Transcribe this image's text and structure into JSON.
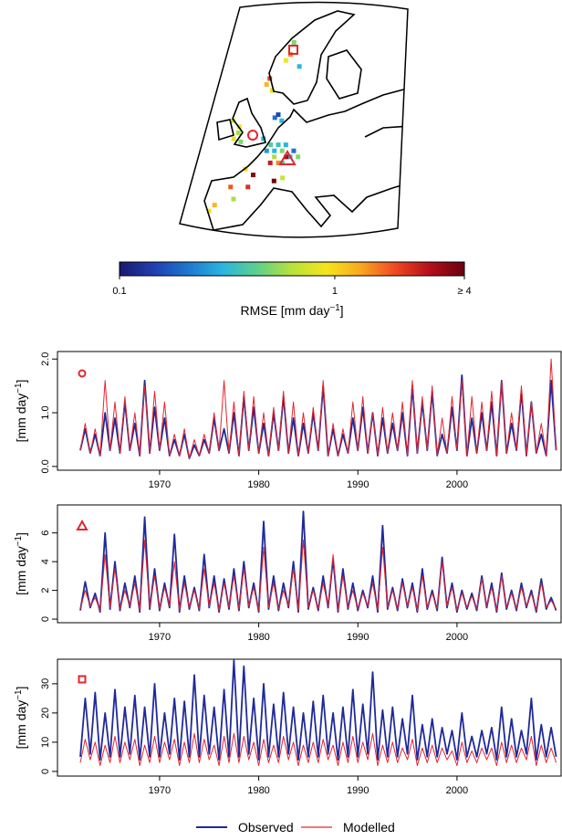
{
  "chart_data": [
    {
      "type": "map",
      "x": [
        -1,
        -2,
        0,
        -3,
        -1,
        6,
        8,
        9,
        10,
        11,
        12,
        7,
        9,
        8,
        10,
        11,
        13,
        14,
        12,
        15,
        9,
        10,
        11,
        6,
        7,
        8,
        13,
        15,
        17,
        18,
        2,
        4,
        -1,
        -4,
        0,
        3,
        -5,
        11,
        9
      ],
      "y": [
        53,
        52,
        51.5,
        55,
        54,
        52,
        51,
        50,
        51,
        50,
        51,
        50,
        49,
        48,
        48,
        48,
        49,
        50,
        49,
        49,
        55.5,
        56,
        55,
        61,
        62,
        60,
        65,
        66,
        68,
        64,
        47,
        46,
        44,
        41,
        42,
        44,
        40,
        45.5,
        45
      ],
      "values": [
        0.6,
        0.8,
        0.5,
        0.7,
        0.9,
        0.3,
        0.4,
        0.3,
        0.35,
        0.5,
        0.3,
        0.25,
        0.6,
        2.5,
        1.5,
        0.4,
        0.3,
        0.2,
        3.0,
        0.5,
        0.2,
        0.15,
        0.3,
        1.2,
        2.0,
        0.8,
        0.9,
        1.5,
        0.5,
        0.3,
        1.0,
        3.5,
        1.8,
        1.2,
        0.6,
        2.2,
        0.9,
        0.7,
        3.8
      ],
      "colorbar": {
        "label_parts": [
          "RMSE [mm day",
          "−1",
          "]"
        ],
        "lim": [
          0.1,
          4
        ],
        "log": true,
        "ticks": [
          0.1,
          1,
          {
            "value": 4,
            "label": "≥ 4"
          }
        ],
        "colors": [
          "#191970",
          "#1f3fb0",
          "#1f78d0",
          "#29b6e0",
          "#5fd08a",
          "#b8e23a",
          "#f5e51b",
          "#f9a71f",
          "#f04822",
          "#b40e1b",
          "#6a0010"
        ]
      }
    },
    {
      "type": "line",
      "y_label_parts": [
        "[mm day",
        "−1",
        "]"
      ],
      "x": [
        1962,
        1962.5,
        1963,
        1963.5,
        1964,
        1964.5,
        1965,
        1965.5,
        1966,
        1966.5,
        1967,
        1967.5,
        1968,
        1968.5,
        1969,
        1969.5,
        1970,
        1970.5,
        1971,
        1971.5,
        1972,
        1972.5,
        1973,
        1973.5,
        1974,
        1974.5,
        1975,
        1975.5,
        1976,
        1976.5,
        1977,
        1977.5,
        1978,
        1978.5,
        1979,
        1979.5,
        1980,
        1980.5,
        1981,
        1981.5,
        1982,
        1982.5,
        1983,
        1983.5,
        1984,
        1984.5,
        1985,
        1985.5,
        1986,
        1986.5,
        1987,
        1987.5,
        1988,
        1988.5,
        1989,
        1989.5,
        1990,
        1990.5,
        1991,
        1991.5,
        1992,
        1992.5,
        1993,
        1993.5,
        1994,
        1994.5,
        1995,
        1995.5,
        1996,
        1996.5,
        1997,
        1997.5,
        1998,
        1998.5,
        1999,
        1999.5,
        2000,
        2000.5,
        2001,
        2001.5,
        2002,
        2002.5,
        2003,
        2003.5,
        2004,
        2004.5,
        2005,
        2005.5,
        2006,
        2006.5,
        2007,
        2007.5,
        2008,
        2008.5,
        2009,
        2009.5,
        2010
      ],
      "xlim": [
        1959.7,
        2010.5
      ],
      "xticks": [
        1970,
        1980,
        1990,
        2000
      ],
      "ylim": [
        -0.07,
        2.14
      ],
      "yticks": [
        {
          "value": 0,
          "label": "0.0"
        },
        {
          "value": 1,
          "label": "1.0"
        },
        {
          "value": 2,
          "label": "2.0"
        }
      ],
      "series": [
        {
          "name": "Observed",
          "color": "#1f2a9a",
          "values": [
            0.3,
            0.7,
            0.25,
            0.6,
            0.2,
            1.0,
            0.3,
            0.9,
            0.25,
            1.2,
            0.3,
            0.8,
            0.2,
            1.6,
            0.25,
            1.1,
            0.3,
            0.9,
            0.2,
            0.5,
            0.2,
            0.6,
            0.15,
            0.4,
            0.2,
            0.5,
            0.25,
            0.9,
            0.3,
            0.7,
            0.25,
            1.0,
            0.2,
            1.3,
            0.3,
            1.1,
            0.25,
            0.8,
            0.2,
            1.0,
            0.3,
            1.3,
            0.25,
            0.9,
            0.2,
            0.8,
            0.25,
            1.0,
            0.3,
            1.5,
            0.2,
            0.7,
            0.2,
            0.6,
            0.25,
            0.9,
            0.3,
            1.1,
            0.25,
            1.0,
            0.2,
            0.9,
            0.25,
            0.8,
            0.3,
            1.0,
            0.2,
            1.5,
            0.25,
            1.2,
            0.3,
            1.4,
            0.2,
            0.6,
            0.25,
            1.1,
            0.3,
            1.7,
            0.2,
            0.9,
            0.25,
            1.0,
            0.3,
            1.2,
            0.2,
            1.6,
            0.25,
            0.8,
            0.3,
            1.4,
            0.2,
            1.2,
            0.25,
            0.6,
            0.2,
            1.6,
            0.3
          ]
        },
        {
          "name": "Modelled",
          "color": "#e3262e",
          "values": [
            0.3,
            0.8,
            0.25,
            0.7,
            0.2,
            1.6,
            0.3,
            1.2,
            0.25,
            1.3,
            0.3,
            1.0,
            0.2,
            1.5,
            0.25,
            1.4,
            0.3,
            1.2,
            0.2,
            0.6,
            0.2,
            0.7,
            0.15,
            0.5,
            0.2,
            0.6,
            0.25,
            1.0,
            0.3,
            1.6,
            0.25,
            1.2,
            0.2,
            1.4,
            0.3,
            1.3,
            0.25,
            1.0,
            0.2,
            1.1,
            0.3,
            1.4,
            0.25,
            1.2,
            0.2,
            1.0,
            0.25,
            1.1,
            0.3,
            1.6,
            0.2,
            0.8,
            0.2,
            0.7,
            0.25,
            1.2,
            0.3,
            1.3,
            0.25,
            1.0,
            0.2,
            1.1,
            0.25,
            1.0,
            0.3,
            1.2,
            0.2,
            1.6,
            0.25,
            1.3,
            0.3,
            1.5,
            0.2,
            0.9,
            0.25,
            1.3,
            0.3,
            1.6,
            0.2,
            1.3,
            0.25,
            1.2,
            0.3,
            1.4,
            0.2,
            1.6,
            0.25,
            1.0,
            0.3,
            1.5,
            0.2,
            1.2,
            0.25,
            0.8,
            0.2,
            2.0,
            0.3
          ]
        }
      ]
    },
    {
      "type": "line",
      "y_label_parts": [
        "[mm day",
        "−1",
        "]"
      ],
      "x": [
        1962,
        1962.5,
        1963,
        1963.5,
        1964,
        1964.5,
        1965,
        1965.5,
        1966,
        1966.5,
        1967,
        1967.5,
        1968,
        1968.5,
        1969,
        1969.5,
        1970,
        1970.5,
        1971,
        1971.5,
        1972,
        1972.5,
        1973,
        1973.5,
        1974,
        1974.5,
        1975,
        1975.5,
        1976,
        1976.5,
        1977,
        1977.5,
        1978,
        1978.5,
        1979,
        1979.5,
        1980,
        1980.5,
        1981,
        1981.5,
        1982,
        1982.5,
        1983,
        1983.5,
        1984,
        1984.5,
        1985,
        1985.5,
        1986,
        1986.5,
        1987,
        1987.5,
        1988,
        1988.5,
        1989,
        1989.5,
        1990,
        1990.5,
        1991,
        1991.5,
        1992,
        1992.5,
        1993,
        1993.5,
        1994,
        1994.5,
        1995,
        1995.5,
        1996,
        1996.5,
        1997,
        1997.5,
        1998,
        1998.5,
        1999,
        1999.5,
        2000,
        2000.5,
        2001,
        2001.5,
        2002,
        2002.5,
        2003,
        2003.5,
        2004,
        2004.5,
        2005,
        2005.5,
        2006,
        2006.5,
        2007,
        2007.5,
        2008,
        2008.5,
        2009,
        2009.5,
        2010
      ],
      "xlim": [
        1959.7,
        2010.5
      ],
      "xticks": [
        1970,
        1980,
        1990,
        2000
      ],
      "ylim": [
        -0.25,
        7.95
      ],
      "yticks": [
        0,
        2,
        4,
        6
      ],
      "series": [
        {
          "name": "Observed",
          "color": "#1f2a9a",
          "values": [
            0.6,
            2.6,
            0.8,
            1.8,
            0.5,
            6.0,
            0.7,
            4.0,
            0.6,
            2.5,
            0.8,
            3.0,
            0.5,
            7.1,
            0.7,
            3.5,
            0.6,
            2.5,
            0.8,
            5.9,
            0.5,
            3.0,
            0.7,
            2.2,
            0.6,
            4.5,
            0.8,
            3.0,
            0.5,
            2.8,
            0.7,
            3.5,
            0.6,
            4.0,
            0.8,
            2.5,
            0.5,
            6.8,
            0.7,
            3.0,
            0.6,
            2.5,
            0.8,
            4.0,
            0.5,
            7.5,
            0.7,
            2.2,
            0.6,
            3.0,
            0.8,
            4.2,
            0.5,
            3.5,
            0.7,
            2.5,
            0.6,
            2.0,
            0.8,
            3.0,
            0.5,
            6.5,
            0.7,
            2.2,
            0.6,
            2.8,
            0.8,
            2.5,
            0.5,
            3.5,
            0.7,
            2.0,
            0.6,
            4.3,
            0.8,
            2.5,
            0.5,
            2.0,
            0.7,
            1.8,
            0.6,
            3.0,
            0.8,
            2.5,
            0.5,
            3.2,
            0.7,
            2.0,
            0.6,
            2.5,
            0.8,
            2.0,
            0.5,
            2.8,
            0.7,
            1.5,
            0.6
          ]
        },
        {
          "name": "Modelled",
          "color": "#e3262e",
          "values": [
            0.7,
            2.0,
            0.9,
            1.5,
            0.6,
            4.5,
            0.8,
            3.5,
            0.7,
            2.0,
            0.9,
            2.5,
            0.6,
            5.5,
            0.8,
            3.0,
            0.7,
            2.2,
            0.9,
            4.0,
            0.6,
            2.5,
            0.8,
            2.0,
            0.7,
            3.5,
            0.9,
            2.5,
            0.6,
            2.5,
            0.8,
            3.0,
            0.7,
            3.5,
            0.9,
            2.2,
            0.6,
            5.0,
            0.8,
            2.5,
            0.7,
            2.0,
            0.9,
            3.5,
            0.6,
            5.5,
            0.8,
            2.0,
            0.7,
            2.5,
            0.9,
            4.5,
            0.6,
            3.0,
            0.8,
            2.0,
            0.7,
            1.8,
            0.9,
            2.5,
            0.6,
            5.0,
            0.8,
            2.0,
            0.7,
            2.5,
            0.9,
            2.2,
            0.6,
            3.0,
            0.8,
            1.8,
            0.7,
            4.0,
            0.9,
            2.2,
            0.6,
            1.8,
            0.8,
            1.6,
            0.7,
            2.8,
            0.9,
            2.2,
            0.6,
            3.0,
            0.8,
            1.8,
            0.7,
            2.2,
            0.9,
            1.8,
            0.6,
            2.5,
            0.8,
            1.3,
            0.7
          ]
        }
      ]
    },
    {
      "type": "line",
      "y_label_parts": [
        "[mm day",
        "−1",
        "]"
      ],
      "x": [
        1962,
        1962.5,
        1963,
        1963.5,
        1964,
        1964.5,
        1965,
        1965.5,
        1966,
        1966.5,
        1967,
        1967.5,
        1968,
        1968.5,
        1969,
        1969.5,
        1970,
        1970.5,
        1971,
        1971.5,
        1972,
        1972.5,
        1973,
        1973.5,
        1974,
        1974.5,
        1975,
        1975.5,
        1976,
        1976.5,
        1977,
        1977.5,
        1978,
        1978.5,
        1979,
        1979.5,
        1980,
        1980.5,
        1981,
        1981.5,
        1982,
        1982.5,
        1983,
        1983.5,
        1984,
        1984.5,
        1985,
        1985.5,
        1986,
        1986.5,
        1987,
        1987.5,
        1988,
        1988.5,
        1989,
        1989.5,
        1990,
        1990.5,
        1991,
        1991.5,
        1992,
        1992.5,
        1993,
        1993.5,
        1994,
        1994.5,
        1995,
        1995.5,
        1996,
        1996.5,
        1997,
        1997.5,
        1998,
        1998.5,
        1999,
        1999.5,
        2000,
        2000.5,
        2001,
        2001.5,
        2002,
        2002.5,
        2003,
        2003.5,
        2004,
        2004.5,
        2005,
        2005.5,
        2006,
        2006.5,
        2007,
        2007.5,
        2008,
        2008.5,
        2009,
        2009.5,
        2010
      ],
      "xlim": [
        1959.7,
        2010.5
      ],
      "xticks": [
        1970,
        1980,
        1990,
        2000
      ],
      "ylim": [
        -1.6,
        38.4
      ],
      "yticks": [
        0,
        10,
        20,
        30
      ],
      "series": [
        {
          "name": "Observed",
          "color": "#1f2a9a",
          "values": [
            5,
            25,
            6,
            27,
            4,
            20,
            5,
            28,
            5,
            22,
            6,
            26,
            4,
            22,
            5,
            30,
            5,
            20,
            6,
            25,
            4,
            24,
            5,
            33,
            5,
            26,
            6,
            22,
            4,
            28,
            5,
            38,
            5,
            36,
            6,
            25,
            4,
            30,
            5,
            23,
            5,
            27,
            6,
            22,
            4,
            20,
            5,
            24,
            5,
            26,
            6,
            20,
            4,
            22,
            5,
            28,
            5,
            23,
            6,
            34,
            4,
            21,
            5,
            22,
            5,
            18,
            6,
            26,
            4,
            16,
            5,
            18,
            5,
            15,
            6,
            14,
            4,
            20,
            5,
            12,
            5,
            14,
            6,
            15,
            4,
            22,
            5,
            18,
            5,
            14,
            6,
            25,
            4,
            16,
            5,
            15,
            5
          ]
        },
        {
          "name": "Modelled",
          "color": "#e3262e",
          "values": [
            3,
            11,
            4,
            10,
            2,
            9,
            3,
            12,
            3,
            10,
            4,
            11,
            2,
            9,
            3,
            12,
            3,
            10,
            4,
            11,
            2,
            10,
            3,
            13,
            3,
            11,
            4,
            9,
            2,
            12,
            3,
            13,
            3,
            12,
            4,
            10,
            2,
            11,
            3,
            9,
            3,
            12,
            4,
            10,
            2,
            9,
            3,
            10,
            3,
            11,
            4,
            9,
            2,
            10,
            3,
            12,
            3,
            10,
            4,
            13,
            2,
            9,
            3,
            10,
            3,
            8,
            4,
            11,
            2,
            8,
            3,
            9,
            3,
            8,
            4,
            7,
            2,
            10,
            3,
            7,
            3,
            8,
            4,
            8,
            2,
            10,
            3,
            9,
            3,
            8,
            4,
            12,
            2,
            9,
            3,
            8,
            3
          ]
        }
      ]
    }
  ]
}
